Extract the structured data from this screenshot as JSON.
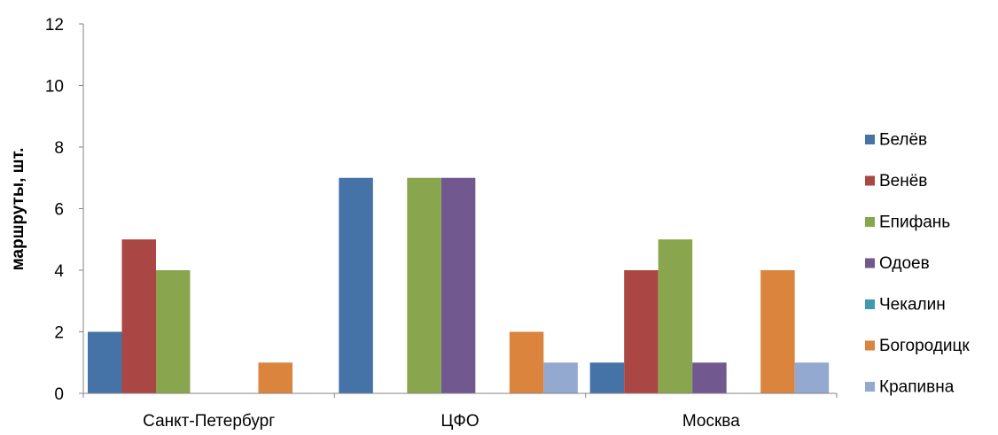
{
  "chart_data": {
    "type": "bar",
    "title": "",
    "xlabel": "",
    "ylabel": "маршруты, шт.",
    "categories": [
      "Санкт-Петербург",
      "ЦФО",
      "Москва"
    ],
    "ylim": [
      0,
      12
    ],
    "yticks": [
      0,
      2,
      4,
      6,
      8,
      10,
      12
    ],
    "grid": false,
    "legend_position": "right",
    "series": [
      {
        "name": "Белёв",
        "color": "#4572A7",
        "values": [
          2,
          7,
          1
        ]
      },
      {
        "name": "Венёв",
        "color": "#AA4643",
        "values": [
          5,
          0,
          4
        ]
      },
      {
        "name": "Епифань",
        "color": "#89A54E",
        "values": [
          4,
          7,
          5
        ]
      },
      {
        "name": "Одоев",
        "color": "#71588F",
        "values": [
          0,
          7,
          1
        ]
      },
      {
        "name": "Чекалин",
        "color": "#4198AF",
        "values": [
          0,
          0,
          0
        ]
      },
      {
        "name": "Богородицк",
        "color": "#DB843D",
        "values": [
          1,
          2,
          4
        ]
      },
      {
        "name": "Крапивна",
        "color": "#93A9CF",
        "values": [
          0,
          1,
          1
        ]
      }
    ]
  }
}
